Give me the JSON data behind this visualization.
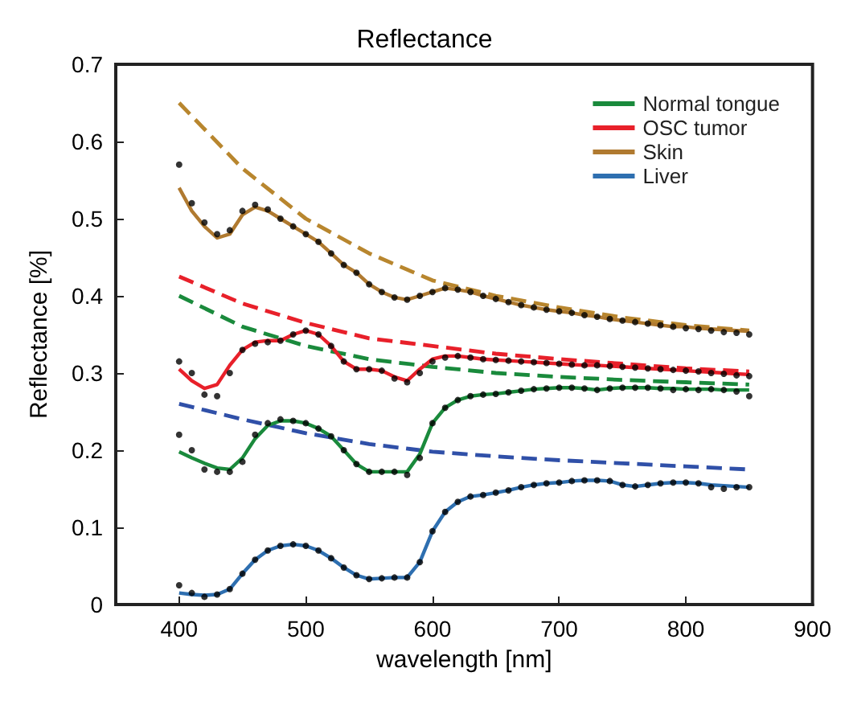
{
  "chart_data": {
    "type": "line",
    "title": "Reflectance",
    "xlabel": "wavelength [nm]",
    "ylabel": "Reflectance [%]",
    "xlim": [
      350,
      900
    ],
    "xticks": [
      400,
      500,
      600,
      700,
      800,
      900
    ],
    "ylim": [
      0,
      0.7
    ],
    "yticks": [
      0,
      0.1,
      0.2,
      0.3,
      0.4,
      0.5,
      0.6,
      0.7
    ],
    "grid": false,
    "legend": "top right",
    "marker": "none",
    "line_style": "solid",
    "x": [
      400,
      410,
      420,
      430,
      440,
      450,
      460,
      470,
      480,
      490,
      500,
      510,
      520,
      530,
      540,
      550,
      560,
      570,
      580,
      590,
      600,
      610,
      620,
      630,
      640,
      650,
      660,
      670,
      680,
      690,
      700,
      710,
      720,
      730,
      740,
      750,
      760,
      770,
      780,
      790,
      800,
      810,
      820,
      830,
      840,
      850
    ],
    "series": [
      {
        "name": "Normal tongue",
        "color": "#1a8a3c",
        "values": [
          0.198,
          0.19,
          0.183,
          0.177,
          0.175,
          0.19,
          0.215,
          0.232,
          0.238,
          0.238,
          0.235,
          0.228,
          0.218,
          0.2,
          0.182,
          0.172,
          0.172,
          0.172,
          0.172,
          0.195,
          0.235,
          0.255,
          0.265,
          0.27,
          0.272,
          0.273,
          0.275,
          0.277,
          0.279,
          0.28,
          0.281,
          0.281,
          0.28,
          0.278,
          0.28,
          0.281,
          0.281,
          0.281,
          0.28,
          0.28,
          0.279,
          0.279,
          0.279,
          0.278,
          0.278,
          0.278
        ]
      },
      {
        "name": "OSC tumor",
        "color": "#e8202a",
        "values": [
          0.305,
          0.29,
          0.28,
          0.285,
          0.31,
          0.33,
          0.34,
          0.342,
          0.342,
          0.35,
          0.355,
          0.35,
          0.335,
          0.315,
          0.305,
          0.305,
          0.303,
          0.295,
          0.29,
          0.305,
          0.318,
          0.322,
          0.322,
          0.32,
          0.318,
          0.317,
          0.316,
          0.315,
          0.314,
          0.313,
          0.312,
          0.311,
          0.31,
          0.31,
          0.309,
          0.308,
          0.307,
          0.306,
          0.305,
          0.304,
          0.303,
          0.302,
          0.301,
          0.3,
          0.299,
          0.298
        ]
      },
      {
        "name": "Skin",
        "color": "#b07a30",
        "values": [
          0.54,
          0.51,
          0.49,
          0.475,
          0.48,
          0.505,
          0.515,
          0.51,
          0.5,
          0.49,
          0.48,
          0.47,
          0.455,
          0.44,
          0.43,
          0.415,
          0.405,
          0.398,
          0.395,
          0.4,
          0.405,
          0.41,
          0.408,
          0.405,
          0.4,
          0.396,
          0.392,
          0.388,
          0.385,
          0.382,
          0.38,
          0.378,
          0.375,
          0.373,
          0.37,
          0.368,
          0.366,
          0.364,
          0.362,
          0.36,
          0.36,
          0.358,
          0.357,
          0.356,
          0.355,
          0.354
        ]
      },
      {
        "name": "Liver",
        "color": "#2e6fb0",
        "values": [
          0.015,
          0.013,
          0.012,
          0.013,
          0.02,
          0.04,
          0.058,
          0.07,
          0.076,
          0.078,
          0.076,
          0.07,
          0.06,
          0.048,
          0.038,
          0.033,
          0.034,
          0.035,
          0.035,
          0.055,
          0.095,
          0.12,
          0.133,
          0.14,
          0.142,
          0.145,
          0.148,
          0.152,
          0.155,
          0.157,
          0.158,
          0.16,
          0.161,
          0.161,
          0.16,
          0.155,
          0.153,
          0.155,
          0.157,
          0.158,
          0.158,
          0.157,
          0.155,
          0.154,
          0.153,
          0.152
        ]
      },
      {
        "color": "#b8862e",
        "line_style": "dashed",
        "x": [
          400,
          450,
          500,
          550,
          600,
          650,
          700,
          750,
          800,
          850
        ],
        "values": [
          0.65,
          0.565,
          0.5,
          0.455,
          0.42,
          0.4,
          0.385,
          0.372,
          0.362,
          0.355
        ]
      },
      {
        "color": "#e8202a",
        "line_style": "dashed",
        "x": [
          400,
          450,
          500,
          550,
          600,
          650,
          700,
          750,
          800,
          850
        ],
        "values": [
          0.425,
          0.39,
          0.365,
          0.345,
          0.335,
          0.325,
          0.318,
          0.312,
          0.306,
          0.302
        ]
      },
      {
        "color": "#1a8a3c",
        "line_style": "dashed",
        "x": [
          400,
          450,
          500,
          550,
          600,
          650,
          700,
          750,
          800,
          850
        ],
        "values": [
          0.4,
          0.36,
          0.335,
          0.318,
          0.308,
          0.3,
          0.295,
          0.291,
          0.288,
          0.285
        ]
      },
      {
        "color": "#3050a8",
        "line_style": "dashed",
        "x": [
          400,
          450,
          500,
          550,
          600,
          650,
          700,
          750,
          800,
          850
        ],
        "values": [
          0.26,
          0.24,
          0.222,
          0.208,
          0.198,
          0.192,
          0.187,
          0.183,
          0.179,
          0.175
        ]
      },
      {
        "type": "scatter",
        "marker": "circle",
        "color": "#000000",
        "values": [
          0.22,
          0.2,
          0.175,
          0.172,
          0.172,
          0.185,
          0.22,
          0.235,
          0.24,
          0.238,
          0.235,
          0.228,
          0.218,
          0.2,
          0.182,
          0.172,
          0.172,
          0.172,
          0.168,
          0.19,
          0.235,
          0.255,
          0.265,
          0.27,
          0.272,
          0.273,
          0.275,
          0.277,
          0.279,
          0.28,
          0.281,
          0.281,
          0.28,
          0.278,
          0.28,
          0.281,
          0.281,
          0.281,
          0.28,
          0.278,
          0.279,
          0.278,
          0.279,
          0.278,
          0.276,
          0.27
        ]
      },
      {
        "type": "scatter",
        "marker": "circle",
        "color": "#000000",
        "values": [
          0.315,
          0.3,
          0.272,
          0.27,
          0.3,
          0.33,
          0.338,
          0.34,
          0.342,
          0.35,
          0.355,
          0.35,
          0.335,
          0.315,
          0.305,
          0.305,
          0.303,
          0.293,
          0.288,
          0.3,
          0.315,
          0.32,
          0.322,
          0.32,
          0.318,
          0.317,
          0.316,
          0.315,
          0.314,
          0.313,
          0.312,
          0.311,
          0.31,
          0.31,
          0.309,
          0.308,
          0.307,
          0.306,
          0.305,
          0.304,
          0.303,
          0.302,
          0.3,
          0.299,
          0.297,
          0.296
        ]
      },
      {
        "type": "scatter",
        "marker": "circle",
        "color": "#000000",
        "values": [
          0.57,
          0.52,
          0.495,
          0.48,
          0.485,
          0.51,
          0.518,
          0.512,
          0.5,
          0.49,
          0.48,
          0.47,
          0.455,
          0.44,
          0.43,
          0.415,
          0.405,
          0.398,
          0.395,
          0.4,
          0.405,
          0.41,
          0.408,
          0.405,
          0.4,
          0.396,
          0.392,
          0.388,
          0.385,
          0.382,
          0.38,
          0.378,
          0.375,
          0.373,
          0.37,
          0.368,
          0.366,
          0.364,
          0.362,
          0.36,
          0.358,
          0.357,
          0.355,
          0.353,
          0.352,
          0.35
        ]
      },
      {
        "type": "scatter",
        "marker": "circle",
        "color": "#000000",
        "values": [
          0.025,
          0.015,
          0.01,
          0.013,
          0.02,
          0.04,
          0.058,
          0.07,
          0.076,
          0.078,
          0.076,
          0.07,
          0.06,
          0.048,
          0.038,
          0.033,
          0.034,
          0.035,
          0.035,
          0.055,
          0.095,
          0.12,
          0.133,
          0.14,
          0.142,
          0.145,
          0.148,
          0.152,
          0.155,
          0.157,
          0.158,
          0.16,
          0.161,
          0.161,
          0.16,
          0.155,
          0.153,
          0.155,
          0.157,
          0.158,
          0.158,
          0.157,
          0.152,
          0.15,
          0.152,
          0.152
        ]
      }
    ]
  }
}
